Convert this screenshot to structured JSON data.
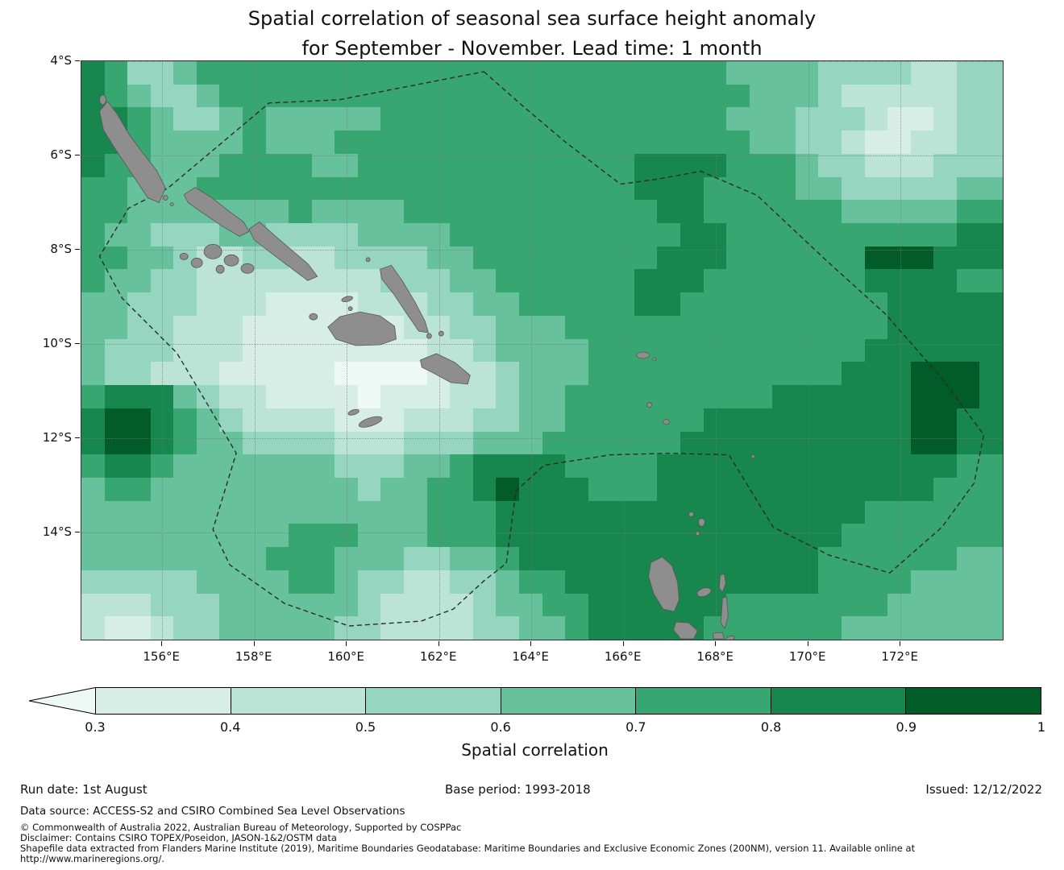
{
  "title": {
    "line1": "Spatial correlation of seasonal sea surface height anomaly",
    "line2": "for September - November. Lead time: 1 month"
  },
  "chart_data": {
    "type": "heatmap",
    "title": "Spatial correlation of seasonal sea surface height anomaly for September - November. Lead time: 1 month",
    "x_axis": {
      "label": "",
      "tick_labels": [
        "156°E",
        "158°E",
        "160°E",
        "162°E",
        "164°E",
        "166°E",
        "168°E",
        "170°E",
        "172°E"
      ],
      "tick_values": [
        156,
        158,
        160,
        162,
        164,
        166,
        168,
        170,
        172
      ],
      "range": [
        154.25,
        174.25
      ]
    },
    "y_axis": {
      "label": "",
      "tick_labels": [
        "4°S",
        "6°S",
        "8°S",
        "10°S",
        "12°S",
        "14°S"
      ],
      "tick_values": [
        4,
        6,
        8,
        10,
        12,
        14
      ],
      "range": [
        4,
        16.31
      ],
      "direction": "south-down"
    },
    "levels": [
      {
        "value_range": "< 0.3",
        "color": "#eef8f5"
      },
      {
        "value_range": "0.3-0.4",
        "color": "#d7eee6"
      },
      {
        "value_range": "0.4-0.5",
        "color": "#bce4d6"
      },
      {
        "value_range": "0.5-0.6",
        "color": "#96d5bf"
      },
      {
        "value_range": "0.6-0.7",
        "color": "#66c19c"
      },
      {
        "value_range": "0.7-0.8",
        "color": "#38a670"
      },
      {
        "value_range": "0.8-0.9",
        "color": "#17874e"
      },
      {
        "value_range": "0.9-1.0",
        "color": "#015c28"
      }
    ],
    "grid": {
      "n_cols": 40,
      "n_rows": 25,
      "lon_start": 154.25,
      "lon_step": 0.5,
      "lat_start": 4.0,
      "lat_step": 0.5,
      "encoding": "each digit is an index into levels[]; spaces are cosmetic",
      "rows": [
        "6533455555 5555555555 5555555544 4433332233",
        "6543345555 5555555555 5555555554 4432222233",
        "6654334544 4445555555 5555555544 4333211233",
        "6654444544 4555555555 5555555554 4332112233",
        "6554445555 4455555555 5555666655 5433222333",
        "5544455555 5555555555 5555666555 5443333344",
        "5544444445 4444555555 5555566555 5554444455",
        "5443334433 3344445555 5555556655 5555555566",
        "5544322332 2333344555 5555566655 5555777666",
        "5443322222 2223334455 5555666555 5555666655",
        "4433322211 1122233445 5555665555 5555566666",
        "4433222111 1111223344 4555555555 5555566666",
        "4333222111 1111122344 4455555555 5555666666",
        "4332221111 1000012234 4455555555 5556667776",
        "5666432211 1101112234 4555555555 6666667776",
        "6776543222 2111222334 4555555666 6666667766",
        "6776544333 3222333444 5555556666 6666667766",
        "5665444444 4333445666 6555566666 6666666655",
        "4554444444 4434455676 6655566666 6666666555",
        "4444444444 4444455566 6666666666 6666555555",
        "4444444445 5544455566 6666666666 6665555555",
        "4444444455 5444334456 6666666666 6655555544",
        "3333344445 5433223345 5666666666 6655554444",
        "2223334444 4432222344 5566666655 5555544444",
        "2112334444 4332222334 4566666555 5554444444"
      ]
    },
    "colorbar": {
      "label": "Spatial correlation",
      "tick_labels": [
        "0.3",
        "0.4",
        "0.5",
        "0.6",
        "0.7",
        "0.8",
        "0.9",
        "1"
      ],
      "under_range_arrow": "left arrow = values below 0.3"
    },
    "overlays": [
      "dashed EEZ / maritime boundary",
      "land in grey: Solomon Islands, Vanuatu"
    ]
  },
  "footer": {
    "run_date": "Run date: 1st August",
    "base_period": "Base period: 1993-2018",
    "issued": "Issued: 12/12/2022",
    "data_source": "Data source: ACCESS-S2 and CSIRO Combined Sea Level Observations",
    "copyright": "© Commonwealth of Australia 2022, Australian Bureau of Meteorology, Supported by COSPPac",
    "disclaimer": "Disclaimer: Contains CSIRO TOPEX/Poseidon, JASON-1&2/OSTM data",
    "shapefile": "Shapefile data extracted from Flanders Marine Institute (2019), Maritime Boundaries Geodatabase: Maritime Boundaries and Exclusive Economic Zones (200NM), version 11. Available online at",
    "url": "http://www.marineregions.org/."
  }
}
